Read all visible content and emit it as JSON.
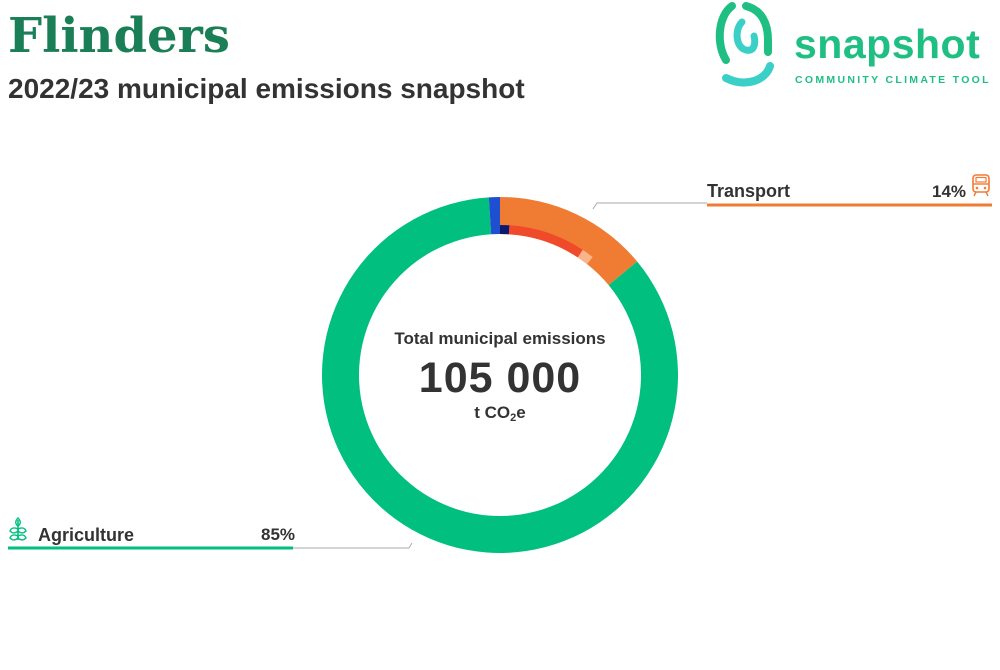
{
  "header": {
    "title": "Flinders",
    "subtitle": "2022/23 municipal emissions snapshot"
  },
  "logo": {
    "word": "snapshot",
    "tagline": "COMMUNITY CLIMATE TOOL",
    "icon": "fingerprint-icon",
    "color": "#1fbf83",
    "accent": "#3ad0c7"
  },
  "chart_data": {
    "type": "donut",
    "center": {
      "caption": "Total municipal emissions",
      "value": "105 000",
      "unit_prefix": "t CO",
      "unit_sub": "2",
      "unit_suffix": "e"
    },
    "outer_ring": [
      {
        "name": "Transport",
        "value": 14,
        "color": "#f07b33",
        "label": "14%",
        "icon": "train-icon"
      },
      {
        "name": "Agriculture",
        "value": 85,
        "color": "#00bf7f",
        "label": "85%",
        "icon": "wheat-icon"
      },
      {
        "name": "",
        "value": 1,
        "color": "#1e4fd1"
      }
    ],
    "inner_ring": [
      {
        "value": 1,
        "color": "#0b1a6e"
      },
      {
        "value": 8.3,
        "color": "#ef4a2a"
      },
      {
        "value": 1.3,
        "color": "#f9b48c"
      }
    ],
    "inner_ring_fraction_start": 0,
    "total_percent": 100
  }
}
